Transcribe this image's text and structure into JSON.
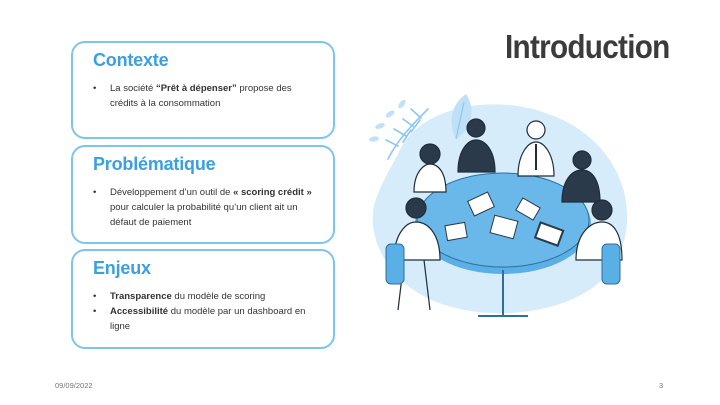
{
  "slide": {
    "title": "Introduction",
    "date": "09/09/2022",
    "page_number": "3"
  },
  "cards": {
    "contexte": {
      "heading": "Contexte",
      "bullets": [
        {
          "pre": "La société ",
          "bold": "“Prêt à dépenser”",
          "post": " propose des crédits à la consommation"
        }
      ]
    },
    "problematique": {
      "heading": "Problématique",
      "bullets": [
        {
          "pre": "Développement d’un outil de ",
          "bold": "« scoring crédit »",
          "post": " pour calculer la probabilité qu’un client ait un défaut de paiement"
        }
      ]
    },
    "enjeux": {
      "heading": "Enjeux",
      "bullets": [
        {
          "pre": "",
          "bold": "Transparence",
          "post": " du modèle de scoring"
        },
        {
          "pre": "",
          "bold": "Accessibilité",
          "post": " du modèle par un dashboard en ligne"
        }
      ]
    }
  },
  "colors": {
    "accent": "#3aa0e0",
    "card_border": "#7cc6ee",
    "illustration_blob": "#d6ecfb",
    "table": "#5aafe6"
  },
  "icons": {
    "illustration": "team-meeting-illustration"
  }
}
